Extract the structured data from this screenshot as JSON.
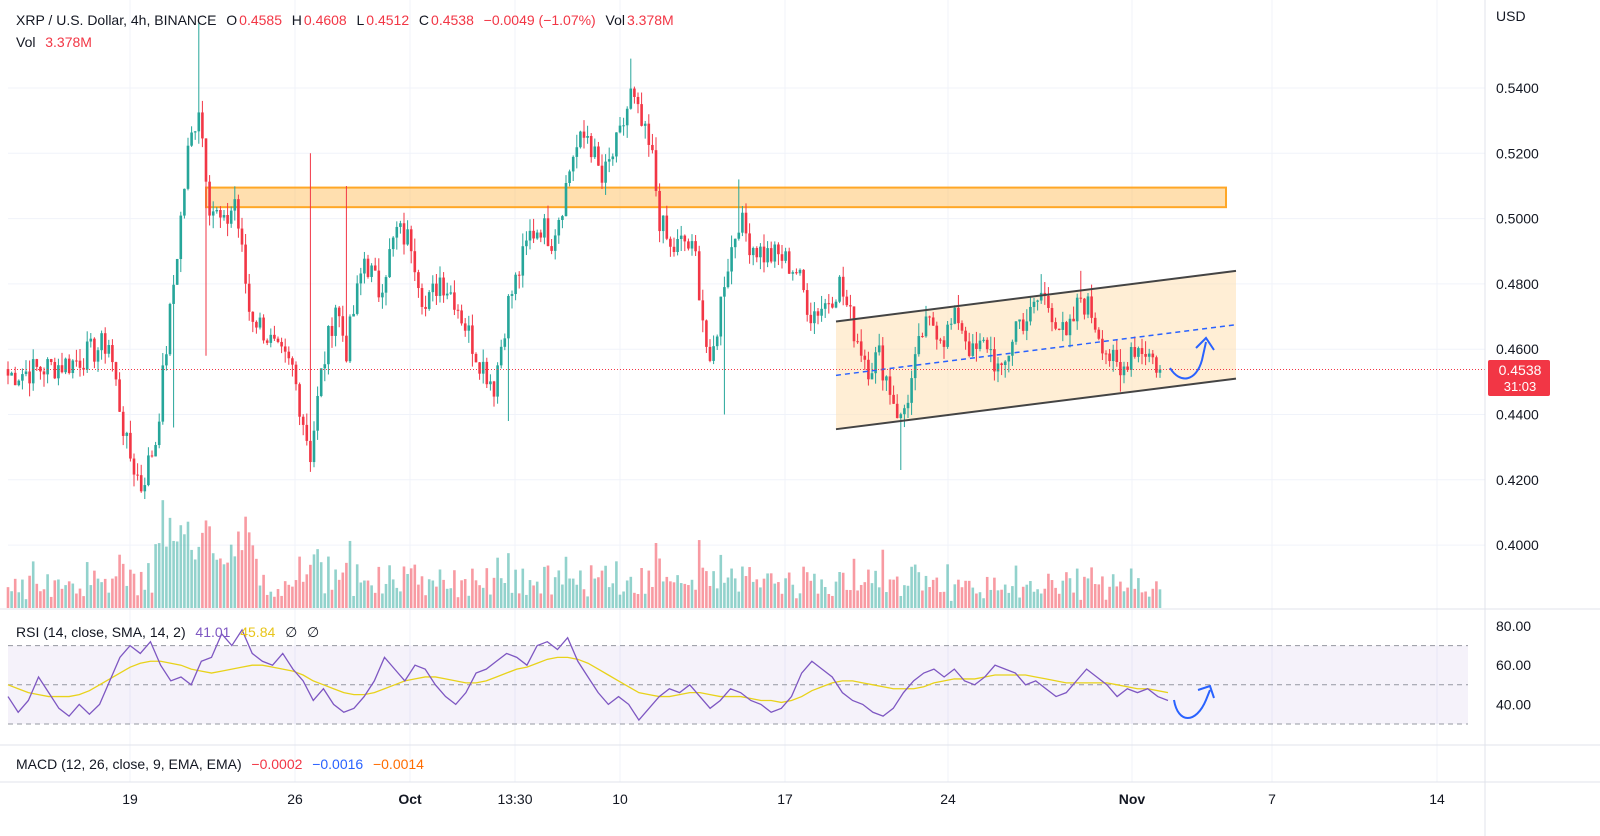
{
  "header": {
    "symbol": "XRP / U.S. Dollar, 4h, BINANCE",
    "o_label": "O",
    "o_value": "0.4585",
    "h_label": "H",
    "h_value": "0.4608",
    "l_label": "L",
    "l_value": "0.4512",
    "c_label": "C",
    "c_value": "0.4538",
    "change": "−0.0049 (−1.07%)",
    "vol_label": "Vol",
    "vol_value": "3.378M",
    "vol2_label": "Vol",
    "vol2_value": "3.378M"
  },
  "axis": {
    "currency": "USD",
    "price_ticks": [
      "0.5400",
      "0.5200",
      "0.5000",
      "0.4800",
      "0.4600",
      "0.4400",
      "0.4200",
      "0.4000"
    ],
    "rsi_ticks": [
      "80.00",
      "60.00",
      "40.00"
    ],
    "time_ticks": [
      {
        "label": "19",
        "bold": false
      },
      {
        "label": "26",
        "bold": false
      },
      {
        "label": "Oct",
        "bold": true
      },
      {
        "label": "13:30",
        "bold": false
      },
      {
        "label": "10",
        "bold": false
      },
      {
        "label": "17",
        "bold": false
      },
      {
        "label": "24",
        "bold": false
      },
      {
        "label": "Nov",
        "bold": true
      },
      {
        "label": "7",
        "bold": false
      },
      {
        "label": "14",
        "bold": false
      }
    ],
    "last_price": "0.4538",
    "countdown": "31:03"
  },
  "rsi_legend": {
    "label": "RSI (14, close, SMA, 14, 2)",
    "rsi": "41.01",
    "sma": "45.84",
    "sym1": "∅",
    "sym2": "∅"
  },
  "macd_legend": {
    "label": "MACD (12, 26, close, 9, EMA, EMA)",
    "v1": "−0.0002",
    "v2": "−0.0016",
    "v3": "−0.0014"
  },
  "colors": {
    "up": "#26a69a",
    "down": "#f23645",
    "zone": "#ffb74d",
    "channel": "#ffe0b2",
    "rsi": "#7e57c2",
    "rsi_sma": "#e8d21a",
    "annotation": "#2962ff"
  },
  "chart_data": {
    "type": "candlestick",
    "ylim": [
      0.38,
      0.56
    ],
    "rsi_ylim": [
      20,
      90
    ],
    "resistance_zone": [
      0.5035,
      0.5095
    ],
    "channel": {
      "lower": [
        0.4355,
        0.451
      ],
      "upper": [
        0.4685,
        0.484
      ],
      "mid": [
        0.452,
        0.4675
      ]
    },
    "anchors": [
      {
        "i": 0,
        "p": 0.452
      },
      {
        "i": 18,
        "p": 0.456
      },
      {
        "i": 28,
        "p": 0.462
      },
      {
        "i": 33,
        "p": 0.43
      },
      {
        "i": 37,
        "p": 0.418
      },
      {
        "i": 41,
        "p": 0.432
      },
      {
        "i": 46,
        "p": 0.48
      },
      {
        "i": 50,
        "p": 0.52
      },
      {
        "i": 53,
        "p": 0.535
      },
      {
        "i": 56,
        "p": 0.505
      },
      {
        "i": 60,
        "p": 0.497
      },
      {
        "i": 63,
        "p": 0.506
      },
      {
        "i": 67,
        "p": 0.472
      },
      {
        "i": 71,
        "p": 0.466
      },
      {
        "i": 75,
        "p": 0.458
      },
      {
        "i": 79,
        "p": 0.454
      },
      {
        "i": 84,
        "p": 0.428
      },
      {
        "i": 87,
        "p": 0.452
      },
      {
        "i": 91,
        "p": 0.474
      },
      {
        "i": 94,
        "p": 0.46
      },
      {
        "i": 99,
        "p": 0.488
      },
      {
        "i": 103,
        "p": 0.478
      },
      {
        "i": 108,
        "p": 0.496
      },
      {
        "i": 112,
        "p": 0.493
      },
      {
        "i": 116,
        "p": 0.472
      },
      {
        "i": 120,
        "p": 0.482
      },
      {
        "i": 124,
        "p": 0.476
      },
      {
        "i": 130,
        "p": 0.459
      },
      {
        "i": 135,
        "p": 0.449
      },
      {
        "i": 139,
        "p": 0.474
      },
      {
        "i": 142,
        "p": 0.484
      },
      {
        "i": 145,
        "p": 0.495
      },
      {
        "i": 148,
        "p": 0.498
      },
      {
        "i": 151,
        "p": 0.494
      },
      {
        "i": 154,
        "p": 0.505
      },
      {
        "i": 157,
        "p": 0.52
      },
      {
        "i": 161,
        "p": 0.526
      },
      {
        "i": 165,
        "p": 0.511
      },
      {
        "i": 170,
        "p": 0.525
      },
      {
        "i": 173,
        "p": 0.538
      },
      {
        "i": 176,
        "p": 0.528
      },
      {
        "i": 179,
        "p": 0.518
      },
      {
        "i": 181,
        "p": 0.5
      },
      {
        "i": 184,
        "p": 0.49
      },
      {
        "i": 188,
        "p": 0.493
      },
      {
        "i": 191,
        "p": 0.488
      },
      {
        "i": 195,
        "p": 0.452
      },
      {
        "i": 199,
        "p": 0.482
      },
      {
        "i": 203,
        "p": 0.5
      },
      {
        "i": 206,
        "p": 0.493
      },
      {
        "i": 210,
        "p": 0.489
      },
      {
        "i": 215,
        "p": 0.488
      },
      {
        "i": 219,
        "p": 0.484
      },
      {
        "i": 223,
        "p": 0.471
      },
      {
        "i": 227,
        "p": 0.474
      },
      {
        "i": 231,
        "p": 0.48
      },
      {
        "i": 235,
        "p": 0.466
      },
      {
        "i": 239,
        "p": 0.455
      },
      {
        "i": 242,
        "p": 0.458
      },
      {
        "i": 245,
        "p": 0.448
      },
      {
        "i": 248,
        "p": 0.438
      },
      {
        "i": 251,
        "p": 0.45
      },
      {
        "i": 254,
        "p": 0.465
      },
      {
        "i": 257,
        "p": 0.468
      },
      {
        "i": 260,
        "p": 0.464
      },
      {
        "i": 264,
        "p": 0.47
      },
      {
        "i": 268,
        "p": 0.458
      },
      {
        "i": 272,
        "p": 0.462
      },
      {
        "i": 276,
        "p": 0.451
      },
      {
        "i": 280,
        "p": 0.468
      },
      {
        "i": 284,
        "p": 0.47
      },
      {
        "i": 287,
        "p": 0.477
      },
      {
        "i": 290,
        "p": 0.472
      },
      {
        "i": 294,
        "p": 0.462
      },
      {
        "i": 298,
        "p": 0.476
      },
      {
        "i": 301,
        "p": 0.471
      },
      {
        "i": 305,
        "p": 0.46
      },
      {
        "i": 309,
        "p": 0.451
      },
      {
        "i": 312,
        "p": 0.461
      },
      {
        "i": 316,
        "p": 0.46
      },
      {
        "i": 320,
        "p": 0.4538
      }
    ],
    "spikes": [
      {
        "i": 53,
        "h": 0.56
      },
      {
        "i": 55,
        "l": 0.458
      },
      {
        "i": 46,
        "l": 0.436
      },
      {
        "i": 37,
        "l": 0.416
      },
      {
        "i": 84,
        "h": 0.52
      },
      {
        "i": 94,
        "h": 0.51
      },
      {
        "i": 139,
        "l": 0.438
      },
      {
        "i": 173,
        "h": 0.549
      },
      {
        "i": 199,
        "l": 0.44
      },
      {
        "i": 203,
        "h": 0.512
      },
      {
        "i": 248,
        "l": 0.423
      },
      {
        "i": 287,
        "h": 0.483
      },
      {
        "i": 298,
        "h": 0.484
      },
      {
        "i": 309,
        "l": 0.447
      }
    ],
    "rsi_values": [
      44,
      36,
      42,
      54,
      46,
      38,
      34,
      40,
      35,
      40,
      52,
      64,
      70,
      66,
      72,
      60,
      52,
      54,
      50,
      62,
      64,
      76,
      70,
      78,
      66,
      62,
      60,
      66,
      58,
      52,
      42,
      48,
      40,
      36,
      38,
      44,
      52,
      64,
      58,
      52,
      60,
      58,
      50,
      44,
      40,
      46,
      56,
      58,
      62,
      66,
      64,
      60,
      70,
      72,
      68,
      74,
      62,
      54,
      46,
      40,
      44,
      40,
      32,
      38,
      44,
      48,
      46,
      50,
      44,
      38,
      42,
      48,
      46,
      42,
      40,
      36,
      38,
      44,
      56,
      62,
      58,
      54,
      46,
      42,
      40,
      36,
      34,
      38,
      46,
      52,
      56,
      58,
      54,
      58,
      52,
      50,
      54,
      60,
      58,
      56,
      50,
      52,
      48,
      44,
      46,
      52,
      58,
      54,
      50,
      44,
      48,
      46,
      48,
      44,
      42
    ],
    "rsi_sma_values": [
      50,
      48,
      46,
      45,
      44,
      44,
      44,
      45,
      47,
      50,
      53,
      56,
      59,
      61,
      62,
      62,
      61,
      60,
      58,
      57,
      56,
      57,
      58,
      59,
      60,
      60,
      59,
      58,
      57,
      55,
      52,
      50,
      48,
      46,
      45,
      45,
      46,
      48,
      50,
      52,
      53,
      54,
      54,
      53,
      52,
      51,
      51,
      52,
      54,
      56,
      58,
      59,
      61,
      63,
      64,
      64,
      63,
      61,
      58,
      55,
      52,
      49,
      46,
      45,
      44,
      44,
      45,
      46,
      46,
      45,
      44,
      44,
      44,
      43,
      42,
      42,
      41,
      42,
      44,
      47,
      49,
      51,
      52,
      52,
      51,
      50,
      49,
      48,
      48,
      48,
      49,
      51,
      52,
      53,
      53,
      53,
      54,
      55,
      55,
      55,
      55,
      54,
      53,
      52,
      51,
      51,
      51,
      51,
      51,
      50,
      49,
      48,
      48,
      47,
      46
    ],
    "volume_note": "volume bars under price"
  }
}
